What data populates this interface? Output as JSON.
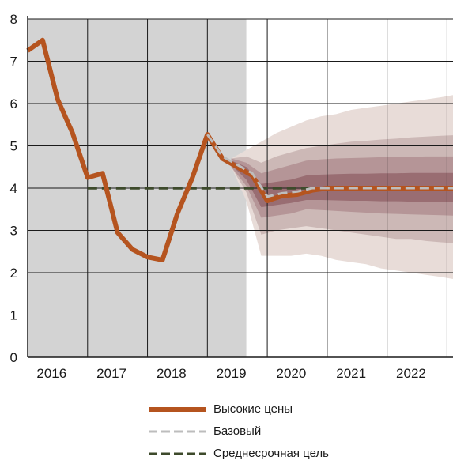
{
  "chart_data": {
    "type": "line",
    "title": "",
    "xlabel": "",
    "ylabel": "",
    "xlim": [
      2015.6,
      2022.7
    ],
    "ylim": [
      0,
      8
    ],
    "x_tick_labels": [
      "2016",
      "2017",
      "2018",
      "2019",
      "2020",
      "2021",
      "2022"
    ],
    "x_ticks": [
      2016,
      2017,
      2018,
      2019,
      2020,
      2021,
      2022
    ],
    "y_ticks": [
      0,
      1,
      2,
      3,
      4,
      5,
      6,
      7,
      8
    ],
    "grid": true,
    "history_shading": {
      "from": 2015.6,
      "to": 2019.25,
      "color": "#d3d3d3"
    },
    "fan_chart": {
      "x": [
        2019.0,
        2019.25,
        2019.5,
        2019.75,
        2020.0,
        2020.25,
        2020.5,
        2020.75,
        2021.0,
        2021.25,
        2021.5,
        2021.75,
        2022.0,
        2022.25,
        2022.5,
        2022.7
      ],
      "center": [
        4.6,
        4.35,
        3.9,
        3.75,
        3.8,
        3.95,
        3.96,
        3.97,
        3.98,
        3.98,
        3.99,
        3.99,
        4.0,
        4.0,
        4.0,
        4.0
      ],
      "bands": [
        {
          "lower": [
            4.5,
            3.7,
            2.4,
            2.4,
            2.4,
            2.45,
            2.4,
            2.3,
            2.25,
            2.2,
            2.1,
            2.05,
            2.0,
            1.95,
            1.9,
            1.85
          ],
          "upper": [
            4.7,
            4.9,
            5.1,
            5.3,
            5.45,
            5.6,
            5.7,
            5.75,
            5.85,
            5.9,
            5.95,
            6.0,
            6.05,
            6.1,
            6.15,
            6.2
          ],
          "color": "#e8dcd8"
        },
        {
          "lower": [
            4.5,
            3.9,
            2.9,
            3.0,
            3.05,
            3.1,
            3.05,
            3.0,
            2.95,
            2.9,
            2.85,
            2.8,
            2.8,
            2.75,
            2.72,
            2.7
          ],
          "upper": [
            4.7,
            4.75,
            4.6,
            4.75,
            4.85,
            4.95,
            5.0,
            5.05,
            5.1,
            5.12,
            5.15,
            5.17,
            5.2,
            5.22,
            5.24,
            5.25
          ],
          "color": "#ccb8b6"
        },
        {
          "lower": [
            4.5,
            4.05,
            3.3,
            3.35,
            3.4,
            3.5,
            3.48,
            3.46,
            3.44,
            3.42,
            3.4,
            3.39,
            3.38,
            3.37,
            3.36,
            3.35
          ],
          "upper": [
            4.7,
            4.6,
            4.35,
            4.45,
            4.55,
            4.65,
            4.68,
            4.7,
            4.71,
            4.72,
            4.73,
            4.74,
            4.74,
            4.75,
            4.75,
            4.75
          ],
          "color": "#b59597"
        },
        {
          "lower": [
            4.55,
            4.2,
            3.55,
            3.6,
            3.65,
            3.72,
            3.72,
            3.71,
            3.7,
            3.7,
            3.69,
            3.69,
            3.68,
            3.68,
            3.68,
            3.68
          ],
          "upper": [
            4.65,
            4.5,
            4.1,
            4.15,
            4.2,
            4.3,
            4.32,
            4.33,
            4.34,
            4.34,
            4.35,
            4.35,
            4.36,
            4.36,
            4.36,
            4.36
          ],
          "color": "#996d72"
        }
      ]
    },
    "series": [
      {
        "name": "Высокие цены",
        "color": "#b5541f",
        "style": "solid",
        "x": [
          2015.6,
          2015.85,
          2016.1,
          2016.35,
          2016.6,
          2016.85,
          2017.1,
          2017.35,
          2017.6,
          2017.85,
          2018.1,
          2018.35,
          2018.6,
          2018.85,
          2019.1,
          2019.35,
          2019.6,
          2019.85,
          2020.1,
          2020.35,
          2020.6,
          2020.85,
          2021.1,
          2021.35,
          2021.6,
          2021.85,
          2022.1,
          2022.35,
          2022.6,
          2022.7
        ],
        "y": [
          7.25,
          7.5,
          6.1,
          5.3,
          4.25,
          4.35,
          2.95,
          2.55,
          2.37,
          2.3,
          3.4,
          4.25,
          5.27,
          4.7,
          4.5,
          4.3,
          3.7,
          3.82,
          3.85,
          3.95,
          4.0,
          4.0,
          4.0,
          4.0,
          4.0,
          4.0,
          4.0,
          4.0,
          4.0,
          4.0
        ]
      },
      {
        "name": "Базовый",
        "color": "#bdbdbd",
        "style": "dashed",
        "x": [
          2018.6,
          2018.85,
          2019.1,
          2019.35,
          2019.6,
          2019.85,
          2020.1,
          2020.35,
          2020.6,
          2020.85,
          2021.1,
          2021.35,
          2021.6,
          2021.85,
          2022.1,
          2022.35,
          2022.6,
          2022.7
        ],
        "y": [
          5.27,
          4.75,
          4.55,
          4.35,
          3.8,
          3.88,
          3.92,
          4.0,
          4.0,
          4.0,
          4.0,
          4.0,
          4.0,
          4.0,
          4.0,
          4.0,
          4.0,
          4.0
        ]
      },
      {
        "name": "Среднесрочная цель",
        "color": "#3d4a2b",
        "style": "dashed",
        "x": [
          2016.6,
          2022.7
        ],
        "y": [
          4.0,
          4.0
        ]
      }
    ]
  }
}
